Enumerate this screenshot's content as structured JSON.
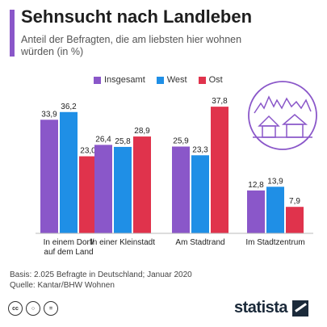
{
  "title": "Sehnsucht nach Landleben",
  "subtitle": "Anteil der Befragten, die am liebsten hier wohnen würden (in %)",
  "colors": {
    "accent": "#8a57c9",
    "insgesamt": "#8a57c9",
    "west": "#1f8fe6",
    "ost": "#e0334c"
  },
  "legend": {
    "insgesamt": "Insgesamt",
    "west": "West",
    "ost": "Ost"
  },
  "chart_data": {
    "type": "bar",
    "categories": [
      "In einem Dorf/ auf dem Land",
      "In einer Kleinstadt",
      "Am Stadtrand",
      "Im Stadtzentrum"
    ],
    "series": [
      {
        "name": "Insgesamt",
        "values": [
          33.9,
          26.4,
          25.9,
          12.8
        ],
        "labels": [
          "33,9",
          "26,4",
          "25,9",
          "12,8"
        ]
      },
      {
        "name": "West",
        "values": [
          36.2,
          25.8,
          23.3,
          13.9
        ],
        "labels": [
          "36,2",
          "25,8",
          "23,3",
          "13,9"
        ]
      },
      {
        "name": "Ost",
        "values": [
          23.0,
          28.9,
          37.8,
          7.9
        ],
        "labels": [
          "23,0",
          "28,9",
          "37,8",
          "7,9"
        ]
      }
    ],
    "ylim": [
      0,
      40
    ],
    "grid": false,
    "legend_position": "top"
  },
  "footer": {
    "basis": "Basis: 2.025 Befragte in Deutschland; Januar 2020",
    "source": "Quelle: Kantar/BHW Wohnen"
  },
  "cc_icons": [
    "cc",
    "i",
    "="
  ],
  "brand": "statista"
}
